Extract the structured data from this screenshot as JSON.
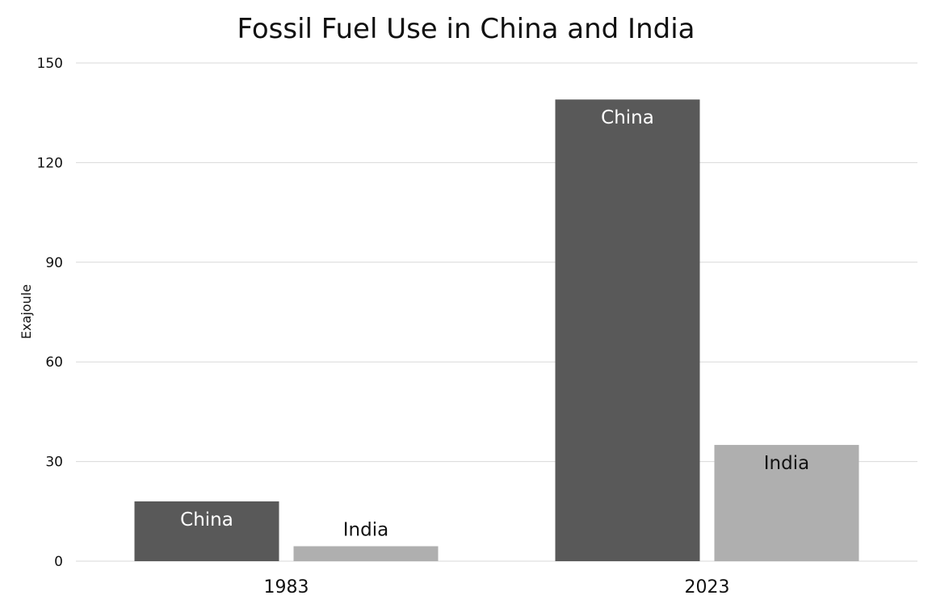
{
  "chart_data": {
    "type": "bar",
    "title": "Fossil Fuel Use in China and India",
    "xlabel": "",
    "ylabel": "Exajoule",
    "categories": [
      "1983",
      "2023"
    ],
    "series": [
      {
        "name": "China",
        "values": [
          18,
          139
        ],
        "color": "#595959",
        "label_color": "#ffffff",
        "label_position": "inside"
      },
      {
        "name": "India",
        "values": [
          4.5,
          35
        ],
        "color": "#afafaf",
        "label_color": "#111111",
        "label_position": "auto"
      }
    ],
    "ylim": [
      0,
      150
    ],
    "yticks": [
      0,
      30,
      60,
      90,
      120,
      150
    ],
    "grid": true,
    "legend": "none"
  }
}
